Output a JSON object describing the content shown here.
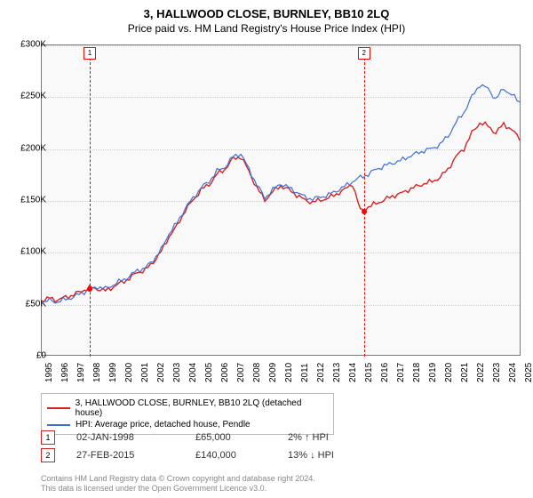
{
  "title": "3, HALLWOOD CLOSE, BURNLEY, BB10 2LQ",
  "subtitle": "Price paid vs. HM Land Registry's House Price Index (HPI)",
  "chart": {
    "type": "line",
    "background_color": "#f9f9f9",
    "border_color": "#7a7a7a",
    "grid_color": "#cfcfcf",
    "ylim": [
      0,
      300000
    ],
    "ytick_step": 50000,
    "yticks": [
      "£0",
      "£50K",
      "£100K",
      "£150K",
      "£200K",
      "£250K",
      "£300K"
    ],
    "xlim": [
      1995,
      2025
    ],
    "xticks": [
      "1995",
      "1996",
      "1997",
      "1998",
      "1999",
      "2000",
      "2001",
      "2002",
      "2003",
      "2004",
      "2005",
      "2006",
      "2007",
      "2008",
      "2009",
      "2010",
      "2011",
      "2012",
      "2013",
      "2014",
      "2015",
      "2016",
      "2017",
      "2018",
      "2019",
      "2020",
      "2021",
      "2022",
      "2023",
      "2024",
      "2025"
    ],
    "series": [
      {
        "name": "3, HALLWOOD CLOSE, BURNLEY, BB10 2LQ (detached house)",
        "color": "#d92020",
        "width": 1.4,
        "points": [
          [
            1995,
            52000
          ],
          [
            1995.5,
            55000
          ],
          [
            1996,
            53000
          ],
          [
            1996.5,
            56000
          ],
          [
            1997,
            58000
          ],
          [
            1997.5,
            62000
          ],
          [
            1998,
            65000
          ],
          [
            1998.5,
            64000
          ],
          [
            1999,
            62000
          ],
          [
            1999.5,
            66000
          ],
          [
            2000,
            70000
          ],
          [
            2000.5,
            74000
          ],
          [
            2001,
            80000
          ],
          [
            2001.5,
            82000
          ],
          [
            2002,
            90000
          ],
          [
            2002.5,
            100000
          ],
          [
            2003,
            115000
          ],
          [
            2003.5,
            125000
          ],
          [
            2004,
            140000
          ],
          [
            2004.5,
            150000
          ],
          [
            2005,
            160000
          ],
          [
            2005.5,
            165000
          ],
          [
            2006,
            175000
          ],
          [
            2006.5,
            180000
          ],
          [
            2007,
            190000
          ],
          [
            2007.5,
            192000
          ],
          [
            2008,
            178000
          ],
          [
            2008.5,
            162000
          ],
          [
            2009,
            150000
          ],
          [
            2009.5,
            158000
          ],
          [
            2010,
            164000
          ],
          [
            2010.5,
            160000
          ],
          [
            2011,
            155000
          ],
          [
            2011.5,
            150000
          ],
          [
            2012,
            148000
          ],
          [
            2012.5,
            150000
          ],
          [
            2013,
            152000
          ],
          [
            2013.5,
            156000
          ],
          [
            2014,
            160000
          ],
          [
            2014.5,
            166000
          ],
          [
            2015,
            140000
          ],
          [
            2015.5,
            143000
          ],
          [
            2016,
            147000
          ],
          [
            2016.5,
            150000
          ],
          [
            2017,
            154000
          ],
          [
            2017.5,
            156000
          ],
          [
            2018,
            160000
          ],
          [
            2018.5,
            163000
          ],
          [
            2019,
            166000
          ],
          [
            2019.5,
            168000
          ],
          [
            2020,
            172000
          ],
          [
            2020.5,
            180000
          ],
          [
            2021,
            192000
          ],
          [
            2021.5,
            200000
          ],
          [
            2022,
            215000
          ],
          [
            2022.5,
            225000
          ],
          [
            2023,
            222000
          ],
          [
            2023.5,
            215000
          ],
          [
            2024,
            224000
          ],
          [
            2024.5,
            218000
          ],
          [
            2025,
            210000
          ]
        ]
      },
      {
        "name": "HPI: Average price, detached house, Pendle",
        "color": "#3b6fd6",
        "width": 1.2,
        "points": [
          [
            1995,
            50000
          ],
          [
            1995.5,
            53000
          ],
          [
            1996,
            51000
          ],
          [
            1996.5,
            54000
          ],
          [
            1997,
            56000
          ],
          [
            1997.5,
            60000
          ],
          [
            1998,
            63000
          ],
          [
            1998.5,
            66000
          ],
          [
            1999,
            64000
          ],
          [
            1999.5,
            68000
          ],
          [
            2000,
            72000
          ],
          [
            2000.5,
            76000
          ],
          [
            2001,
            82000
          ],
          [
            2001.5,
            84000
          ],
          [
            2002,
            92000
          ],
          [
            2002.5,
            102000
          ],
          [
            2003,
            118000
          ],
          [
            2003.5,
            128000
          ],
          [
            2004,
            142000
          ],
          [
            2004.5,
            152000
          ],
          [
            2005,
            162000
          ],
          [
            2005.5,
            168000
          ],
          [
            2006,
            178000
          ],
          [
            2006.5,
            182000
          ],
          [
            2007,
            192000
          ],
          [
            2007.5,
            195000
          ],
          [
            2008,
            180000
          ],
          [
            2008.5,
            165000
          ],
          [
            2009,
            152000
          ],
          [
            2009.5,
            160000
          ],
          [
            2010,
            166000
          ],
          [
            2010.5,
            162000
          ],
          [
            2011,
            158000
          ],
          [
            2011.5,
            153000
          ],
          [
            2012,
            151000
          ],
          [
            2012.5,
            153000
          ],
          [
            2013,
            155000
          ],
          [
            2013.5,
            159000
          ],
          [
            2014,
            163000
          ],
          [
            2014.5,
            168000
          ],
          [
            2015,
            172000
          ],
          [
            2015.5,
            175000
          ],
          [
            2016,
            180000
          ],
          [
            2016.5,
            183000
          ],
          [
            2017,
            186000
          ],
          [
            2017.5,
            188000
          ],
          [
            2018,
            192000
          ],
          [
            2018.5,
            195000
          ],
          [
            2019,
            198000
          ],
          [
            2019.5,
            200000
          ],
          [
            2020,
            204000
          ],
          [
            2020.5,
            212000
          ],
          [
            2021,
            225000
          ],
          [
            2021.5,
            235000
          ],
          [
            2022,
            250000
          ],
          [
            2022.5,
            262000
          ],
          [
            2023,
            258000
          ],
          [
            2023.5,
            248000
          ],
          [
            2024,
            258000
          ],
          [
            2024.5,
            252000
          ],
          [
            2025,
            245000
          ]
        ]
      }
    ],
    "markers": [
      {
        "n": "1",
        "x": 1998.0,
        "y": 65000
      },
      {
        "n": "2",
        "x": 2015.15,
        "y": 140000
      }
    ]
  },
  "legend": {
    "items": [
      {
        "color": "#d92020",
        "label": "3, HALLWOOD CLOSE, BURNLEY, BB10 2LQ (detached house)"
      },
      {
        "color": "#3b6fd6",
        "label": "HPI: Average price, detached house, Pendle"
      }
    ]
  },
  "sales": [
    {
      "n": "1",
      "date": "02-JAN-1998",
      "price": "£65,000",
      "delta": "2% ↑ HPI"
    },
    {
      "n": "2",
      "date": "27-FEB-2015",
      "price": "£140,000",
      "delta": "13% ↓ HPI"
    }
  ],
  "footer": {
    "line1": "Contains HM Land Registry data © Crown copyright and database right 2024.",
    "line2": "This data is licensed under the Open Government Licence v3.0."
  }
}
